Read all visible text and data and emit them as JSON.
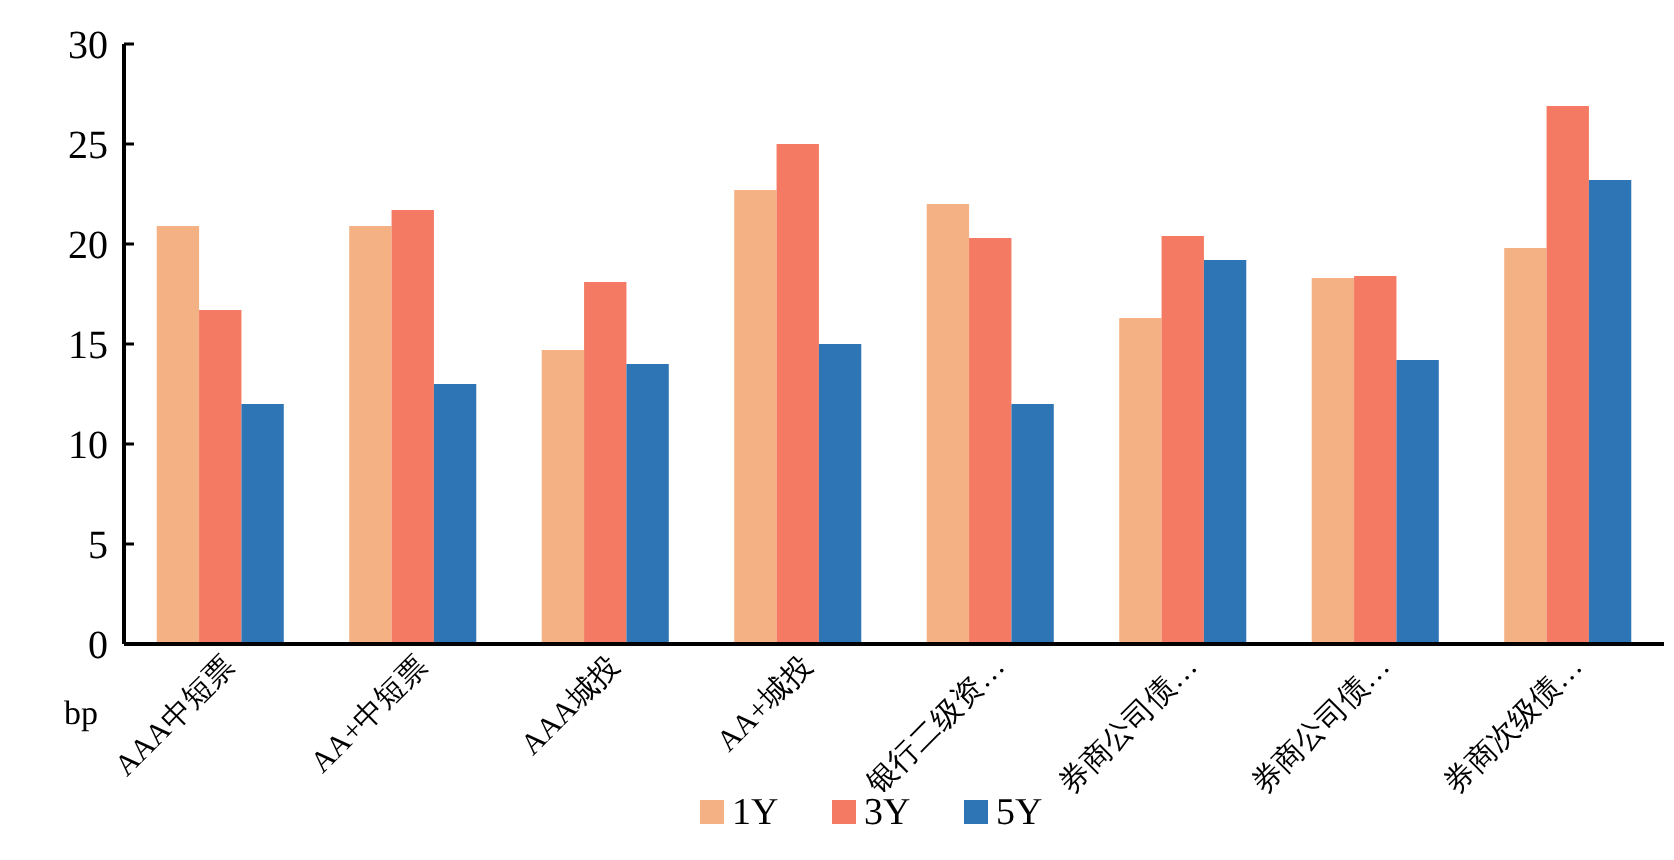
{
  "chart_data": {
    "type": "bar",
    "ylabel": "bp",
    "categories": [
      "AAA中短票",
      "AA+中短票",
      "AAA城投",
      "AA+城投",
      "银行二级资…",
      "券商公司债…",
      "券商公司债…",
      "券商次级债…"
    ],
    "series": [
      {
        "name": "1Y",
        "color": "#f4b183",
        "values": [
          20.9,
          20.9,
          14.7,
          22.7,
          22.0,
          16.3,
          18.3,
          19.8
        ]
      },
      {
        "name": "3Y",
        "color": "#f47a64",
        "values": [
          16.7,
          21.7,
          18.1,
          25.0,
          20.3,
          20.4,
          18.4,
          26.9
        ]
      },
      {
        "name": "5Y",
        "color": "#2e75b6",
        "values": [
          12.0,
          13.0,
          14.0,
          15.0,
          12.0,
          19.2,
          14.2,
          23.2
        ]
      }
    ],
    "ylim": [
      0,
      30
    ],
    "yticks": [
      0,
      5,
      10,
      15,
      20,
      25,
      30
    ],
    "grid": false,
    "legend": "bottom"
  }
}
